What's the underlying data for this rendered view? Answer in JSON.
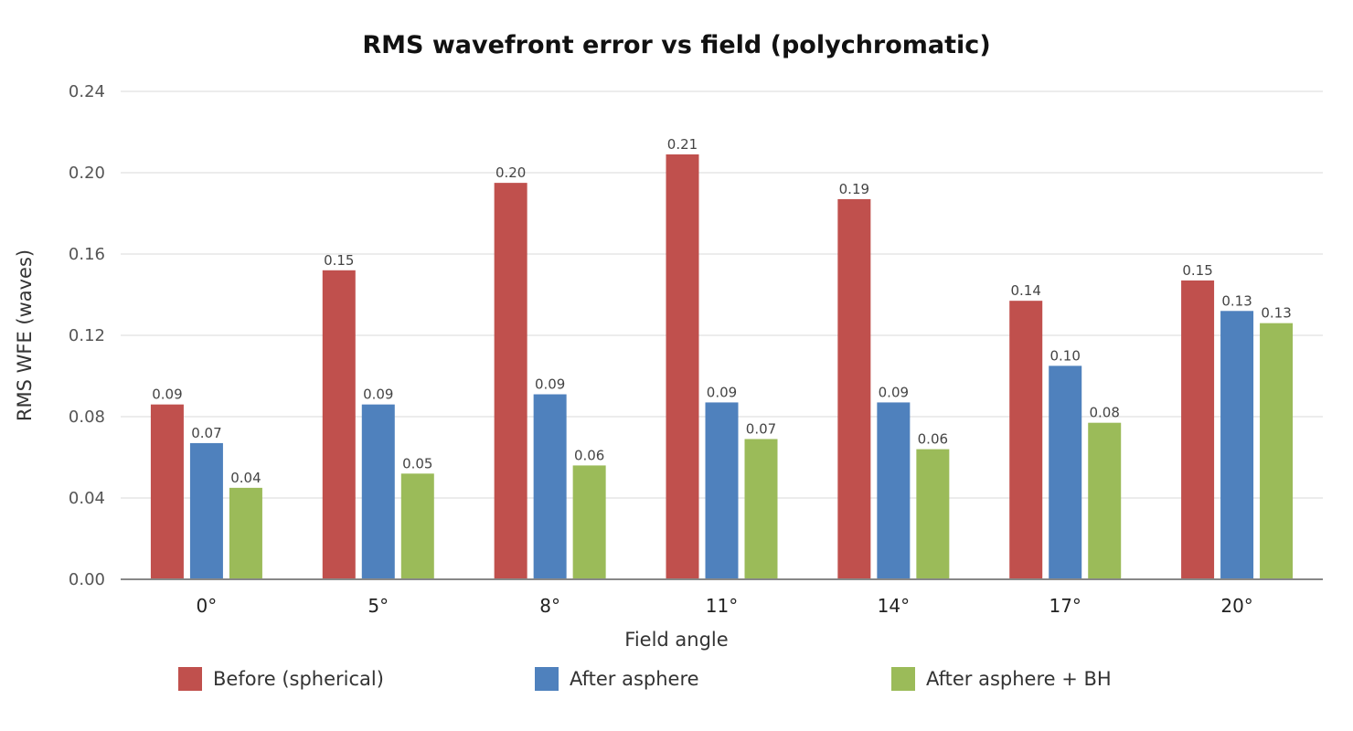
{
  "chart_data": {
    "type": "bar",
    "title": "RMS wavefront error vs field (polychromatic)",
    "xlabel": "Field angle",
    "ylabel": "RMS WFE (waves)",
    "categories": [
      "0°",
      "5°",
      "8°",
      "11°",
      "14°",
      "17°",
      "20°"
    ],
    "ylim": [
      0,
      0.24
    ],
    "yticks": [
      "0.00",
      "0.04",
      "0.08",
      "0.12",
      "0.16",
      "0.20",
      "0.24"
    ],
    "grid": true,
    "legend_position": "bottom",
    "series": [
      {
        "name": "Before (spherical)",
        "color": "#c0504d",
        "values": [
          0.086,
          0.152,
          0.195,
          0.209,
          0.187,
          0.137,
          0.147
        ],
        "labels": [
          "0.09",
          "0.15",
          "0.20",
          "0.21",
          "0.19",
          "0.14",
          "0.15"
        ]
      },
      {
        "name": "After asphere",
        "color": "#4f81bd",
        "values": [
          0.067,
          0.086,
          0.091,
          0.087,
          0.087,
          0.105,
          0.132
        ],
        "labels": [
          "0.07",
          "0.09",
          "0.09",
          "0.09",
          "0.09",
          "0.10",
          "0.13"
        ]
      },
      {
        "name": "After asphere + BH",
        "color": "#9bbb59",
        "values": [
          0.045,
          0.052,
          0.056,
          0.069,
          0.064,
          0.077,
          0.126
        ],
        "labels": [
          "0.04",
          "0.05",
          "0.06",
          "0.07",
          "0.06",
          "0.08",
          "0.13"
        ]
      }
    ]
  }
}
